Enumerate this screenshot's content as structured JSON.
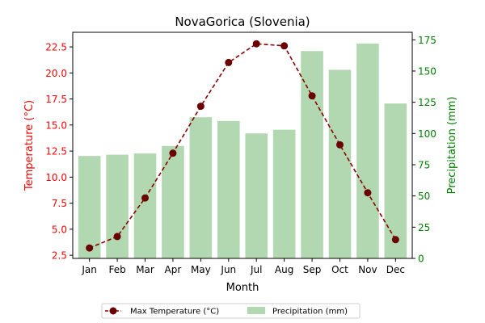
{
  "chart_data": {
    "type": "bar+line",
    "title": "NovaGorica (Slovenia)",
    "xlabel": "Month",
    "categories": [
      "Jan",
      "Feb",
      "Mar",
      "Apr",
      "May",
      "Jun",
      "Jul",
      "Aug",
      "Sep",
      "Oct",
      "Nov",
      "Dec"
    ],
    "left_axis": {
      "label": "Temperature (°C)",
      "color": "#ff0000",
      "ylim": [
        2.2,
        23.9
      ],
      "ticks": [
        "2.5",
        "5.0",
        "7.5",
        "10.0",
        "12.5",
        "15.0",
        "17.5",
        "20.0",
        "22.5"
      ]
    },
    "right_axis": {
      "label": "Precipitation (mm)",
      "color": "#008000",
      "ylim": [
        0,
        181
      ],
      "ticks": [
        "0",
        "25",
        "50",
        "75",
        "100",
        "125",
        "150",
        "175"
      ]
    },
    "series": [
      {
        "name": "Max Temperature (°C)",
        "type": "line",
        "axis": "left",
        "color": "#8b0000",
        "style": "dashed",
        "marker": "circle",
        "values": [
          3.2,
          4.3,
          8.0,
          12.3,
          16.8,
          21.0,
          22.8,
          22.6,
          17.8,
          13.1,
          8.5,
          4.0
        ]
      },
      {
        "name": "Precipitation (mm)",
        "type": "bar",
        "axis": "right",
        "color": "#b1d8b1",
        "values": [
          82,
          83,
          84,
          90,
          113,
          110,
          100,
          103,
          166,
          151,
          172,
          124
        ]
      }
    ],
    "legend": {
      "placement": "bottom-center",
      "entries": [
        "Max Temperature (°C)",
        "Precipitation (mm)"
      ]
    }
  }
}
